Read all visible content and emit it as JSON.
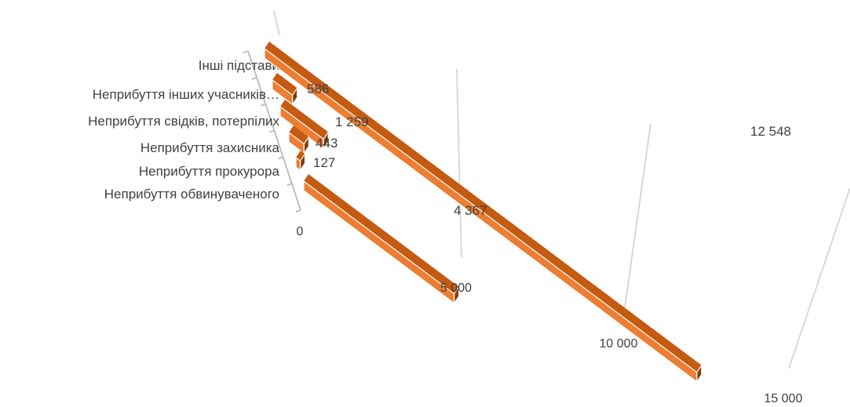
{
  "chart_data": {
    "type": "bar",
    "orientation": "horizontal",
    "perspective": "3d",
    "categories": [
      "Інші підстави",
      "Неприбуття інших учасників…",
      "Неприбуття свідків, потерпілих",
      "Неприбуття захисника",
      "Неприбуття прокурора",
      "Неприбуття обвинуваченого"
    ],
    "values": [
      12548,
      586,
      1259,
      443,
      127,
      4367
    ],
    "value_labels": [
      "12 548",
      "586",
      "1 259",
      "443",
      "127",
      "4 367"
    ],
    "axis_ticks": [
      0,
      5000,
      10000,
      15000
    ],
    "axis_tick_labels": [
      "0",
      "5 000",
      "10 000",
      "15 000"
    ],
    "xlim": [
      0,
      15000
    ],
    "grid": true,
    "legend": "none",
    "colors": {
      "bar_top": "#c55a11",
      "bar_front": "#ed7d31",
      "bar_side": "#843c0c",
      "gridline": "#d9d9d9",
      "axis": "#bfbfbf",
      "text": "#404040"
    }
  }
}
